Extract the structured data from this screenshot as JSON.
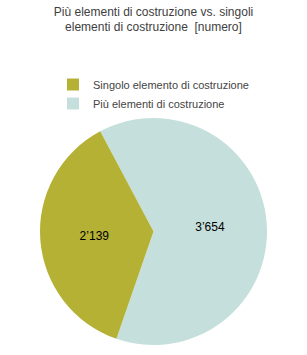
{
  "chart_data": {
    "type": "pie",
    "title": "Più elementi di costruzione vs. singoli\nelementi di costruzione  [numero]",
    "categories": [
      "Più elementi di costruzione",
      "Singolo elemento di costruzione"
    ],
    "values": [
      3654,
      2139
    ],
    "value_labels": [
      "3’654",
      "2’139"
    ],
    "colors": [
      "#c5e0dc",
      "#b5b135"
    ],
    "data_labels": true,
    "legend": "top"
  }
}
